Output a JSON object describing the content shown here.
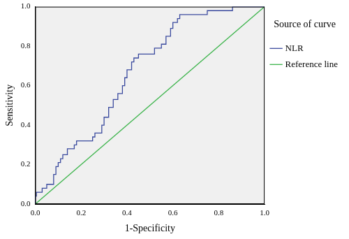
{
  "chart_data": {
    "type": "line",
    "x_label": "1-Specificity",
    "y_label": "Sensitivity",
    "legend_title": "Source of curve",
    "legend": "right",
    "grid": false,
    "xlim": [
      0,
      1
    ],
    "ylim": [
      0,
      1
    ],
    "xticks": [
      {
        "value": 0,
        "label": "0.0"
      },
      {
        "value": 0.2,
        "label": "0.2"
      },
      {
        "value": 0.4,
        "label": "0.4"
      },
      {
        "value": 0.6,
        "label": "0.6"
      },
      {
        "value": 0.8,
        "label": "0.8"
      },
      {
        "value": 1,
        "label": "1.0"
      }
    ],
    "yticks": [
      {
        "value": 0,
        "label": "0.0"
      },
      {
        "value": 0.2,
        "label": "0.2"
      },
      {
        "value": 0.4,
        "label": "0.4"
      },
      {
        "value": 0.6,
        "label": "0.6"
      },
      {
        "value": 0.8,
        "label": "0.8"
      },
      {
        "value": 1,
        "label": "1.0"
      }
    ],
    "series": [
      {
        "name": "NLR",
        "color": "#3a4a9e",
        "line_style": "step",
        "x": [
          0,
          0.005,
          0.03,
          0.05,
          0.08,
          0.09,
          0.1,
          0.11,
          0.12,
          0.14,
          0.17,
          0.18,
          0.25,
          0.26,
          0.29,
          0.3,
          0.32,
          0.34,
          0.36,
          0.38,
          0.39,
          0.4,
          0.42,
          0.43,
          0.45,
          0.52,
          0.55,
          0.57,
          0.59,
          0.6,
          0.62,
          0.63,
          0.75,
          0.86,
          0.87,
          1
        ],
        "values": [
          0,
          0.04,
          0.06,
          0.08,
          0.1,
          0.15,
          0.19,
          0.21,
          0.23,
          0.25,
          0.28,
          0.3,
          0.32,
          0.34,
          0.36,
          0.4,
          0.44,
          0.49,
          0.53,
          0.56,
          0.6,
          0.64,
          0.68,
          0.72,
          0.74,
          0.76,
          0.79,
          0.81,
          0.85,
          0.89,
          0.92,
          0.94,
          0.96,
          0.98,
          1,
          1
        ]
      },
      {
        "name": "Reference line",
        "color": "#3cb44b",
        "line_style": "solid",
        "x": [
          0,
          1
        ],
        "values": [
          0,
          1
        ]
      }
    ]
  }
}
